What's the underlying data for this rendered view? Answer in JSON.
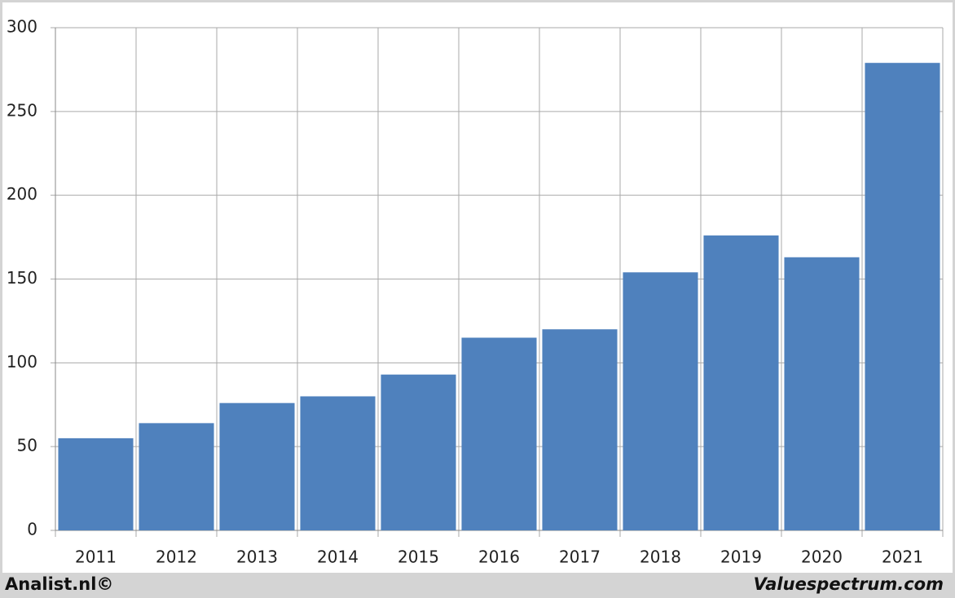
{
  "chart_data": {
    "type": "bar",
    "categories": [
      "2011",
      "2012",
      "2013",
      "2014",
      "2015",
      "2016",
      "2017",
      "2018",
      "2019",
      "2020",
      "2021"
    ],
    "values": [
      55,
      64,
      76,
      80,
      93,
      115,
      120,
      154,
      176,
      163,
      279
    ],
    "color": "#4f81bd",
    "ylim": [
      0,
      300
    ],
    "yticks": [
      0,
      50,
      100,
      150,
      200,
      250,
      300
    ],
    "grid": true,
    "footer_left": "Analist.nl©",
    "footer_right": "Valuespectrum.com"
  }
}
